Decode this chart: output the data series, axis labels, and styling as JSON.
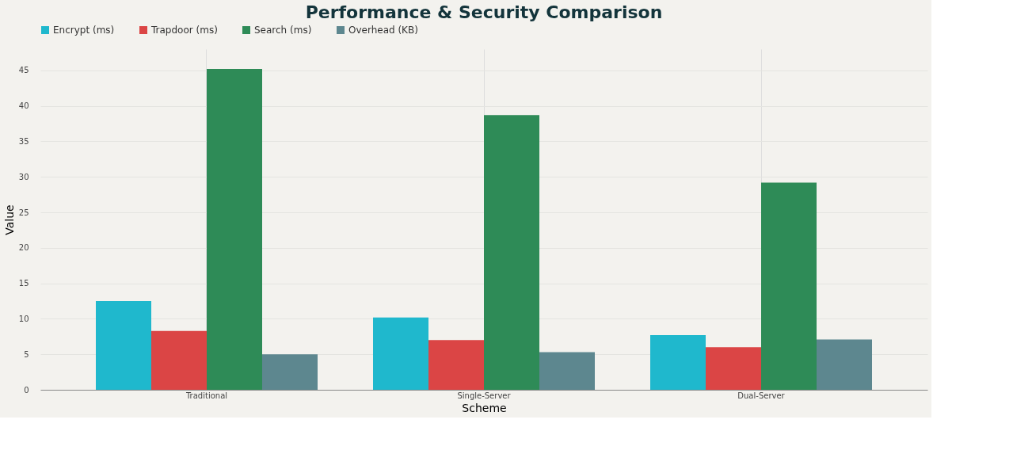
{
  "chart_data": {
    "type": "bar",
    "title": "Performance & Security Comparison",
    "xlabel": "Scheme",
    "ylabel": "Value",
    "categories": [
      "Traditional",
      "Single-Server",
      "Dual-Server"
    ],
    "series": [
      {
        "name": "Encrypt (ms)",
        "color": "#1fb8cd",
        "values": [
          12.5,
          10.2,
          7.7
        ]
      },
      {
        "name": "Trapdoor (ms)",
        "color": "#db4545",
        "values": [
          8.3,
          7.0,
          6.0
        ]
      },
      {
        "name": "Search (ms)",
        "color": "#2e8b57",
        "values": [
          45.2,
          38.7,
          29.2
        ]
      },
      {
        "name": "Overhead (KB)",
        "color": "#5d878f",
        "values": [
          5.0,
          5.3,
          7.1
        ]
      }
    ],
    "ylim": [
      0,
      48
    ],
    "yticks": [
      0,
      5,
      10,
      15,
      20,
      25,
      30,
      35,
      40,
      45
    ],
    "grid": true,
    "legend": "top"
  }
}
